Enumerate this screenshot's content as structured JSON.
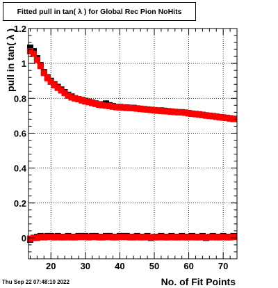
{
  "chart_data": {
    "type": "scatter",
    "title": "Fitted pull in tan( λ ) for Global Rec Pion NoHits",
    "xlabel": "No. of Fit Points",
    "ylabel": "pull in tan( λ )",
    "xlim": [
      13.5,
      74
    ],
    "ylim": [
      -0.12,
      1.2
    ],
    "x_ticks": [
      20,
      30,
      40,
      50,
      60,
      70
    ],
    "y_ticks": [
      0,
      0.2,
      0.4,
      0.6,
      0.8,
      1,
      1.2
    ],
    "x_tick_labels": [
      "20",
      "30",
      "40",
      "50",
      "60",
      "70"
    ],
    "y_tick_labels": [
      "0",
      "0.2",
      "0.4",
      "0.6",
      "0.8",
      "1",
      "1.2"
    ],
    "grid": true,
    "x": [
      14,
      15,
      16,
      17,
      18,
      19,
      20,
      21,
      22,
      23,
      24,
      25,
      26,
      27,
      28,
      29,
      30,
      31,
      32,
      33,
      34,
      35,
      36,
      37,
      38,
      39,
      40,
      41,
      42,
      43,
      44,
      45,
      46,
      47,
      48,
      49,
      50,
      51,
      52,
      53,
      54,
      55,
      56,
      57,
      58,
      59,
      60,
      61,
      62,
      63,
      64,
      65,
      66,
      67,
      68,
      69,
      70,
      71,
      72,
      73
    ],
    "series": [
      {
        "color": "#000000",
        "values": [
          1.09,
          1.07,
          1.03,
          0.99,
          0.95,
          0.92,
          0.9,
          0.88,
          0.865,
          0.85,
          0.835,
          0.82,
          0.81,
          0.8,
          0.795,
          0.79,
          0.785,
          0.78,
          0.775,
          0.77,
          0.765,
          0.765,
          0.77,
          0.76,
          0.755,
          0.75,
          0.75,
          0.748,
          0.747,
          0.745,
          0.745,
          0.742,
          0.74,
          0.738,
          0.736,
          0.734,
          0.732,
          0.73,
          0.73,
          0.728,
          0.726,
          0.724,
          0.722,
          0.72,
          0.72,
          0.718,
          0.715,
          0.712,
          0.71,
          0.708,
          0.705,
          0.702,
          0.7,
          0.698,
          0.695,
          0.692,
          0.69,
          0.688,
          0.685,
          0.682
        ]
      },
      {
        "color": "#ff0000",
        "values": [
          1.07,
          1.055,
          1.02,
          0.985,
          0.945,
          0.915,
          0.895,
          0.875,
          0.86,
          0.845,
          0.83,
          0.815,
          0.805,
          0.8,
          0.795,
          0.788,
          0.782,
          0.778,
          0.773,
          0.768,
          0.763,
          0.76,
          0.758,
          0.755,
          0.752,
          0.749,
          0.748,
          0.747,
          0.745,
          0.744,
          0.743,
          0.741,
          0.739,
          0.737,
          0.735,
          0.733,
          0.731,
          0.729,
          0.727,
          0.726,
          0.725,
          0.723,
          0.721,
          0.72,
          0.719,
          0.717,
          0.714,
          0.711,
          0.709,
          0.707,
          0.704,
          0.701,
          0.699,
          0.697,
          0.694,
          0.691,
          0.689,
          0.687,
          0.684,
          0.681
        ]
      },
      {
        "color": "#000000",
        "values": [
          -0.01,
          0,
          0.005,
          0.01,
          0.005,
          0.01,
          0.01,
          0.005,
          0.01,
          0.005,
          0.005,
          0.01,
          0.005,
          0.005,
          0.01,
          0.01,
          0.01,
          0.005,
          0.01,
          0.01,
          0.005,
          0.005,
          0.01,
          0.01,
          0.005,
          0.005,
          0.01,
          0.01,
          0.01,
          0.005,
          0.005,
          0.01,
          0.005,
          0.005,
          0.01,
          0,
          0.005,
          0.005,
          0.01,
          0.005,
          0.005,
          0.01,
          0.005,
          0.005,
          0.01,
          0.005,
          0.005,
          0.01,
          0.005,
          0.005,
          0.01,
          0,
          0.005,
          0.01,
          0.005,
          0.005,
          0.01,
          0.005,
          0.005,
          0.01
        ]
      },
      {
        "color": "#ff0000",
        "values": [
          -0.005,
          0,
          0,
          0.005,
          0.003,
          0.005,
          0.005,
          0.003,
          0.005,
          0.003,
          0.003,
          0.005,
          0.003,
          0.003,
          0.005,
          0.005,
          0.005,
          0.003,
          0.005,
          0.005,
          0.003,
          0.003,
          0.005,
          0.005,
          0.003,
          0.003,
          0.005,
          0.005,
          0.005,
          0.003,
          0.003,
          0.005,
          0.003,
          0.003,
          0.005,
          0.002,
          0.003,
          0.003,
          0.005,
          0.003,
          0.003,
          0.005,
          0.003,
          0.003,
          0.005,
          0.003,
          0.003,
          0.005,
          0.003,
          0.003,
          0.005,
          0.002,
          0.003,
          0.005,
          0.003,
          0.003,
          0.005,
          0.003,
          0.003,
          0.005
        ]
      }
    ]
  },
  "footer": {
    "timestamp": "Thu Sep 22 07:48:10 2022"
  }
}
